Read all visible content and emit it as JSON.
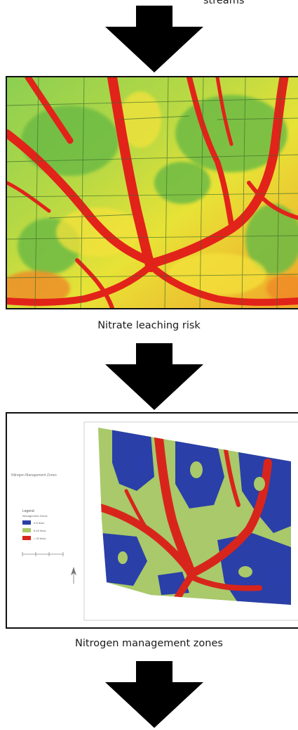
{
  "top_caption": "streams",
  "panels": [
    {
      "caption": "Nitrate leaching risk"
    },
    {
      "caption": "Nitrogen management zones",
      "map_title": "Nitrogen Management Zones",
      "legend": {
        "title": "Legend",
        "subtitle": "Management Zones",
        "items": [
          {
            "label": "0-8 lb/ac",
            "color": "#2a3fa8"
          },
          {
            "label": "8-40 lb/ac",
            "color": "#a9c96a"
          },
          {
            "label": "> 40 lb/ac",
            "color": "#d8251c"
          }
        ]
      }
    }
  ],
  "colors": {
    "risk_low": "#7cc04a",
    "risk_mid": "#f3e42a",
    "risk_high": "#e2231a",
    "zone_low": "#2a3fa8",
    "zone_mid": "#a9c96a",
    "zone_high": "#d8251c",
    "arrow": "#000000"
  }
}
